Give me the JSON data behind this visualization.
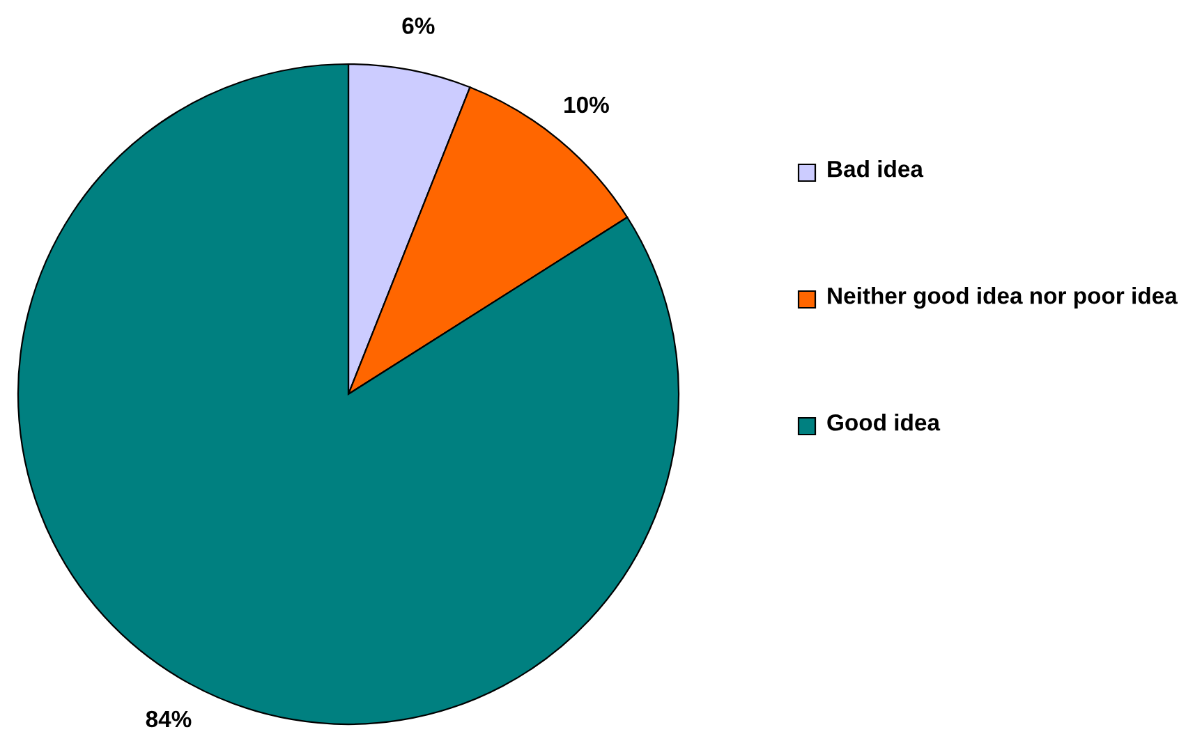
{
  "chart_data": {
    "type": "pie",
    "categories": [
      "Bad idea",
      "Neither good idea nor poor idea",
      "Good idea"
    ],
    "values": [
      6,
      10,
      84
    ],
    "colors": [
      "#ccccff",
      "#ff6600",
      "#008080"
    ],
    "value_labels": [
      "6%",
      "10%",
      "84%"
    ],
    "legend": "right"
  }
}
